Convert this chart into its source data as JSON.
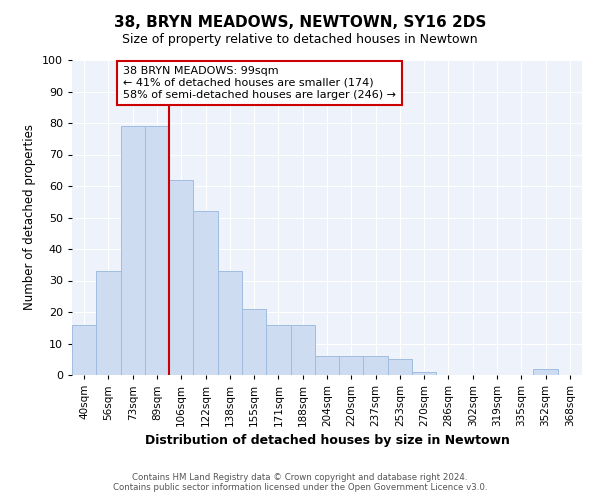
{
  "title": "38, BRYN MEADOWS, NEWTOWN, SY16 2DS",
  "subtitle": "Size of property relative to detached houses in Newtown",
  "xlabel": "Distribution of detached houses by size in Newtown",
  "ylabel": "Number of detached properties",
  "bar_labels": [
    "40sqm",
    "56sqm",
    "73sqm",
    "89sqm",
    "106sqm",
    "122sqm",
    "138sqm",
    "155sqm",
    "171sqm",
    "188sqm",
    "204sqm",
    "220sqm",
    "237sqm",
    "253sqm",
    "270sqm",
    "286sqm",
    "302sqm",
    "319sqm",
    "335sqm",
    "352sqm",
    "368sqm"
  ],
  "bar_values": [
    16,
    33,
    79,
    79,
    62,
    52,
    33,
    21,
    16,
    16,
    6,
    6,
    6,
    5,
    1,
    0,
    0,
    0,
    0,
    2,
    0
  ],
  "bar_color": "#cddcf0",
  "bar_edge_color": "#a0bce0",
  "vline_x": 4,
  "vline_color": "#cc0000",
  "ylim": [
    0,
    100
  ],
  "yticks": [
    0,
    10,
    20,
    30,
    40,
    50,
    60,
    70,
    80,
    90,
    100
  ],
  "annotation_text": "38 BRYN MEADOWS: 99sqm\n← 41% of detached houses are smaller (174)\n58% of semi-detached houses are larger (246) →",
  "annotation_box_edge": "#cc0000",
  "footer_line1": "Contains HM Land Registry data © Crown copyright and database right 2024.",
  "footer_line2": "Contains public sector information licensed under the Open Government Licence v3.0.",
  "background_color": "#ffffff",
  "plot_background_color": "#edf2fb"
}
